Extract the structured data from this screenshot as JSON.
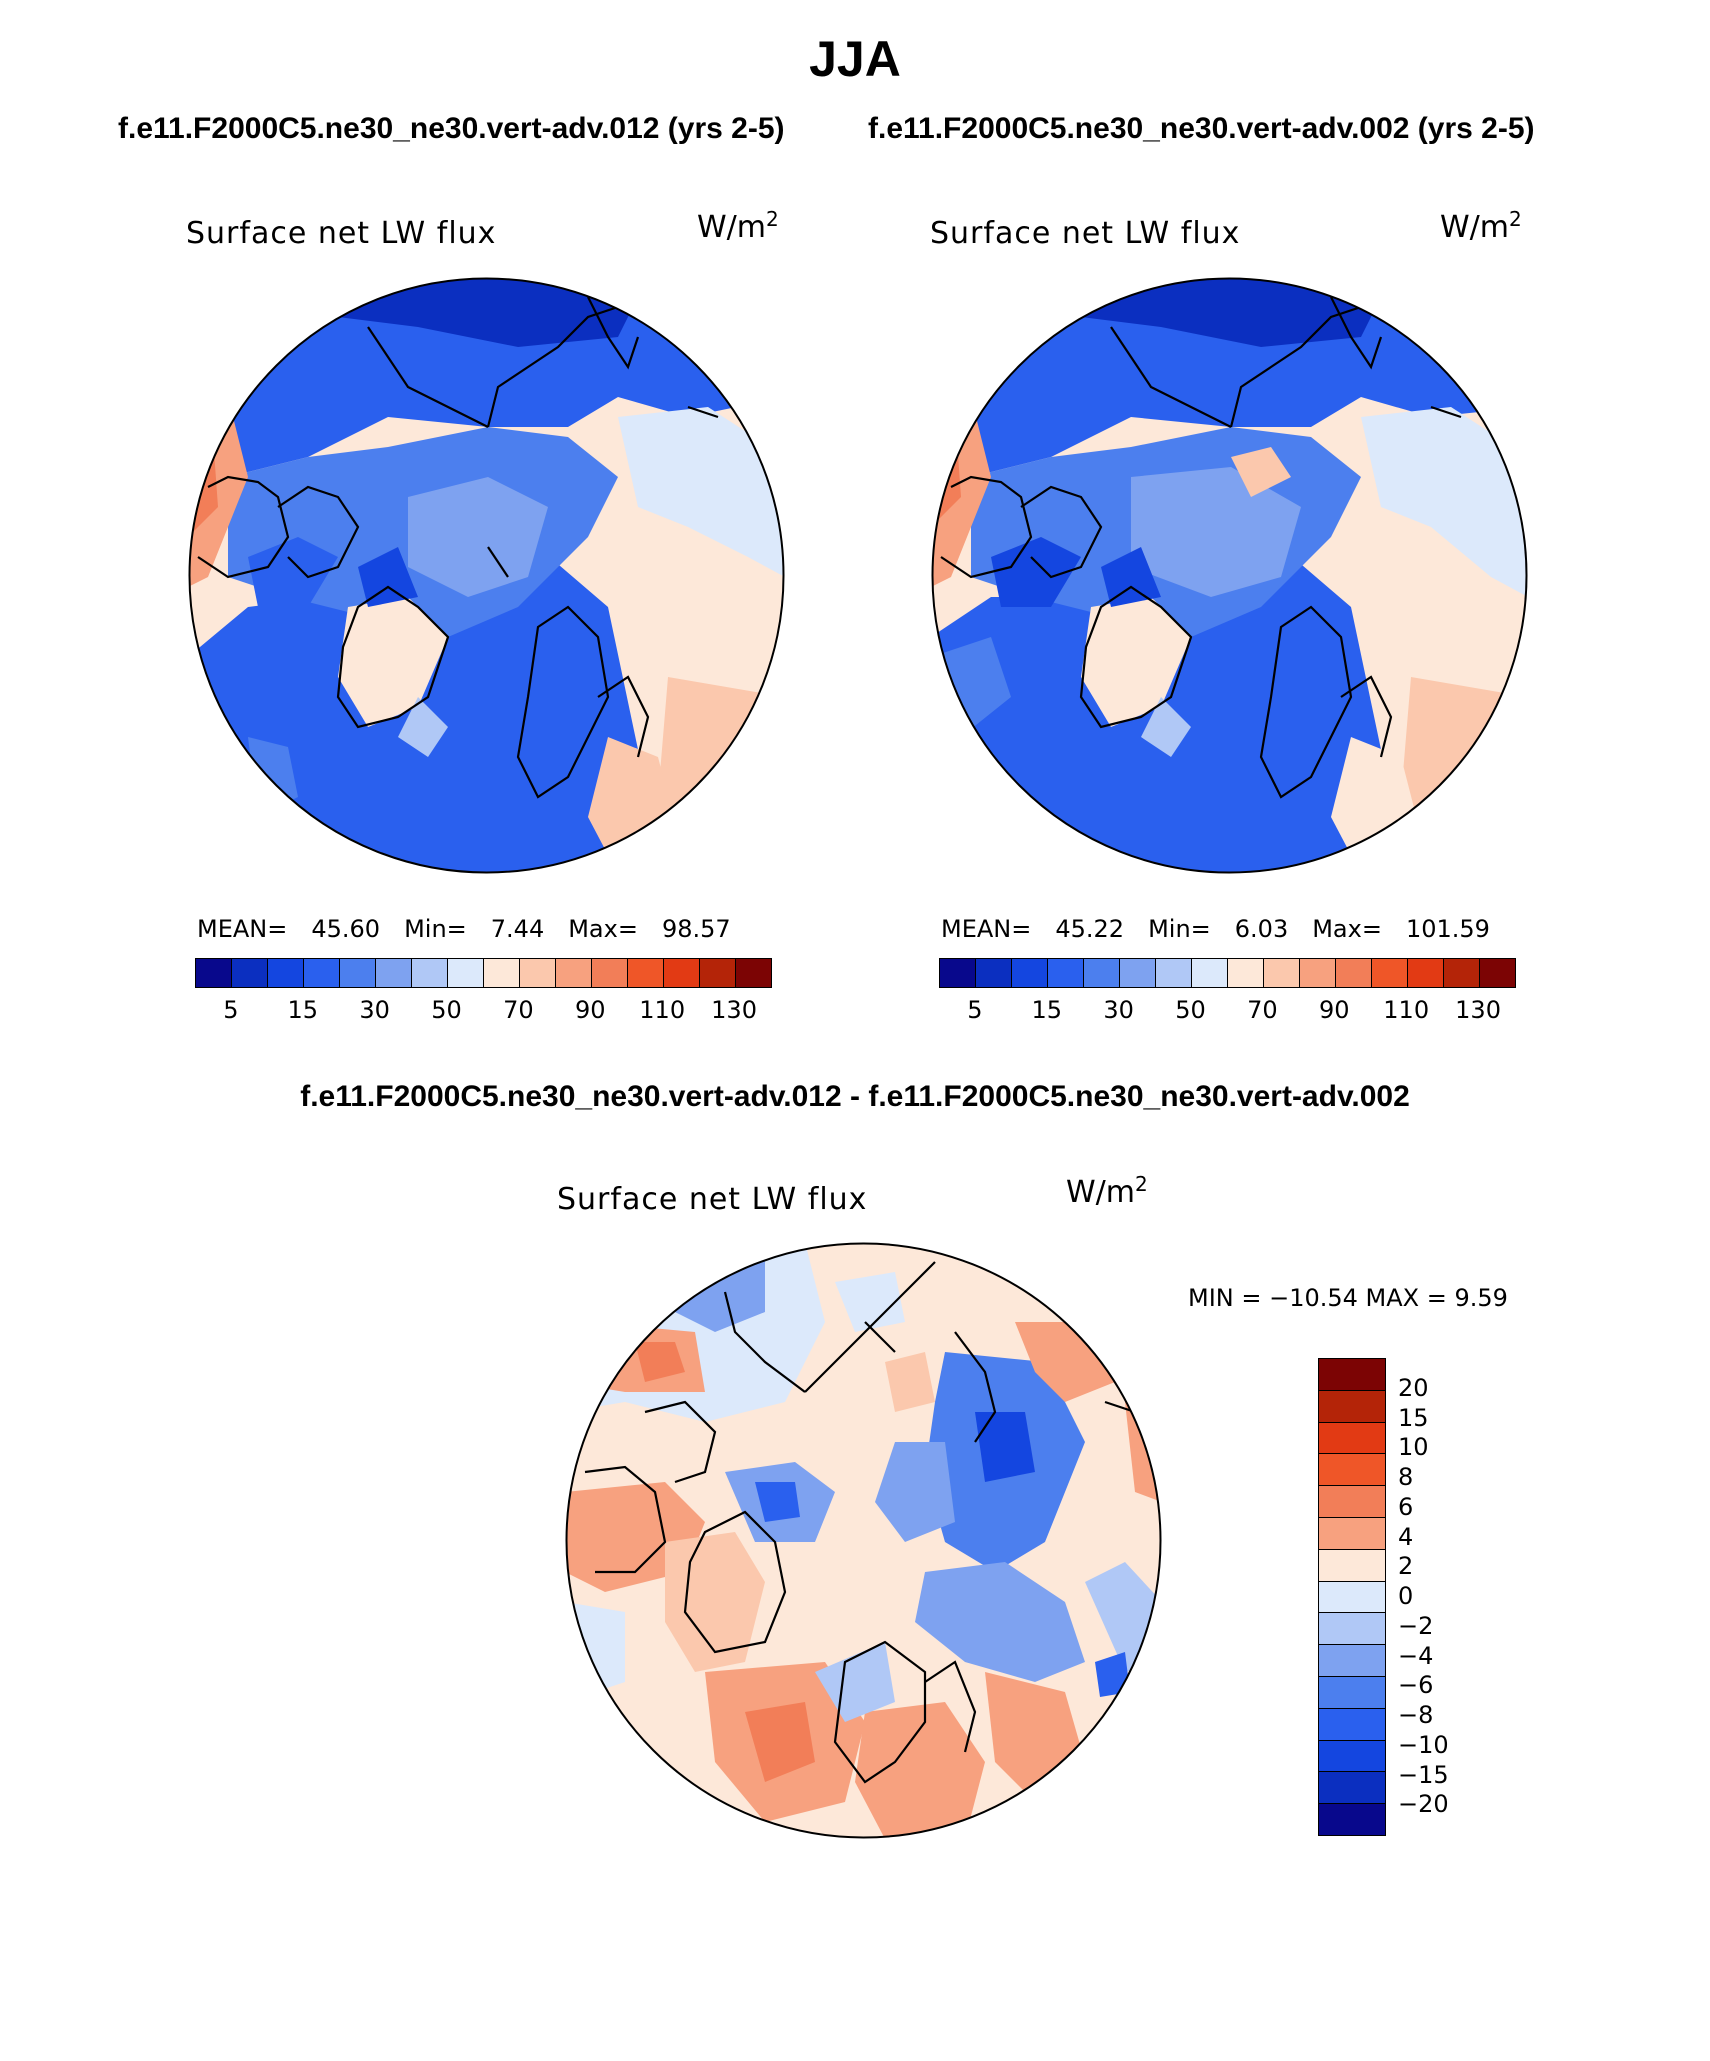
{
  "title": "JJA",
  "subtitles": {
    "left": "f.e11.F2000C5.ne30_ne30.vert-adv.012 (yrs 2-5)",
    "right": "f.e11.F2000C5.ne30_ne30.vert-adv.002 (yrs 2-5)",
    "diff": "f.e11.F2000C5.ne30_ne30.vert-adv.012 - f.e11.F2000C5.ne30_ne30.vert-adv.002"
  },
  "panels": [
    {
      "variable": "Surface net LW flux",
      "units_base": "W/m",
      "units_exp": "2",
      "stats": {
        "mean_label": "MEAN=",
        "mean": "45.60",
        "min_label": "Min=",
        "min": "7.44",
        "max_label": "Max=",
        "max": "98.57"
      }
    },
    {
      "variable": "Surface net LW flux",
      "units_base": "W/m",
      "units_exp": "2",
      "stats": {
        "mean_label": "MEAN=",
        "mean": "45.22",
        "min_label": "Min=",
        "min": "6.03",
        "max_label": "Max=",
        "max": "101.59"
      }
    }
  ],
  "diff_panel": {
    "variable": "Surface net LW flux",
    "units_base": "W/m",
    "units_exp": "2",
    "minmax": "MIN = −10.54 MAX =    9.59"
  },
  "colorbar_main": {
    "colors": [
      "#08088c",
      "#0b2fc0",
      "#1446e0",
      "#2a60ee",
      "#4c7fee",
      "#7ea2f0",
      "#b0c8f6",
      "#dce9fb",
      "#fde8d9",
      "#fbc8ad",
      "#f7a17f",
      "#f27e58",
      "#ef5628",
      "#e23a14",
      "#b42408",
      "#7c0404"
    ],
    "labels": [
      "5",
      "15",
      "30",
      "50",
      "70",
      "90",
      "110",
      "130"
    ]
  },
  "colorbar_diff": {
    "colors": [
      "#7c0404",
      "#b42408",
      "#e23a14",
      "#ef5628",
      "#f27e58",
      "#f7a17f",
      "#fde8d9",
      "#dce9fb",
      "#b0c8f6",
      "#7ea2f0",
      "#4c7fee",
      "#2a60ee",
      "#1446e0",
      "#0b2fc0",
      "#08088c"
    ],
    "labels": [
      "20",
      "15",
      "10",
      "8",
      "6",
      "4",
      "2",
      "0",
      "−2",
      "−4",
      "−6",
      "−8",
      "−10",
      "−15",
      "−20"
    ]
  }
}
